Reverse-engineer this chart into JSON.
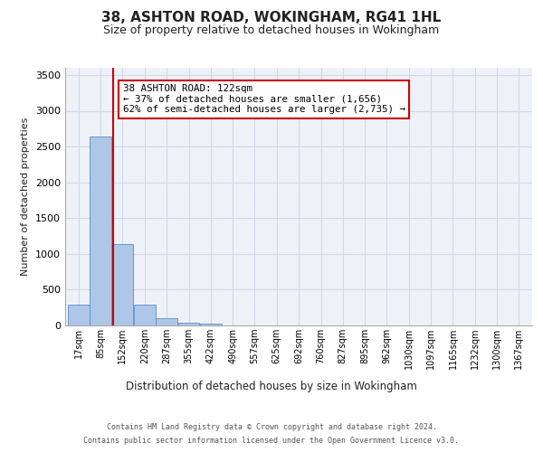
{
  "title_line1": "38, ASHTON ROAD, WOKINGHAM, RG41 1HL",
  "title_line2": "Size of property relative to detached houses in Wokingham",
  "xlabel": "Distribution of detached houses by size in Wokingham",
  "ylabel": "Number of detached properties",
  "bin_labels": [
    "17sqm",
    "85sqm",
    "152sqm",
    "220sqm",
    "287sqm",
    "355sqm",
    "422sqm",
    "490sqm",
    "557sqm",
    "625sqm",
    "692sqm",
    "760sqm",
    "827sqm",
    "895sqm",
    "962sqm",
    "1030sqm",
    "1097sqm",
    "1165sqm",
    "1232sqm",
    "1300sqm",
    "1367sqm"
  ],
  "bin_values": [
    17,
    85,
    152,
    220,
    287,
    355,
    422,
    490,
    557,
    625,
    692,
    760,
    827,
    895,
    962,
    1030,
    1097,
    1165,
    1232,
    1300,
    1367
  ],
  "bar_heights": [
    290,
    2640,
    1140,
    295,
    95,
    40,
    30,
    0,
    0,
    0,
    0,
    0,
    0,
    0,
    0,
    0,
    0,
    0,
    0,
    0,
    0
  ],
  "bar_color": "#aec6e8",
  "bar_edge_color": "#5a8fc4",
  "property_size": 122,
  "red_line_color": "#cc0000",
  "annotation_text_line1": "38 ASHTON ROAD: 122sqm",
  "annotation_text_line2": "← 37% of detached houses are smaller (1,656)",
  "annotation_text_line3": "62% of semi-detached houses are larger (2,735) →",
  "annotation_box_color": "#cc0000",
  "ylim": [
    0,
    3600
  ],
  "yticks": [
    0,
    500,
    1000,
    1500,
    2000,
    2500,
    3000,
    3500
  ],
  "grid_color": "#d0d8e8",
  "bg_color": "#eef2f8",
  "footer_line1": "Contains HM Land Registry data © Crown copyright and database right 2024.",
  "footer_line2": "Contains public sector information licensed under the Open Government Licence v3.0."
}
